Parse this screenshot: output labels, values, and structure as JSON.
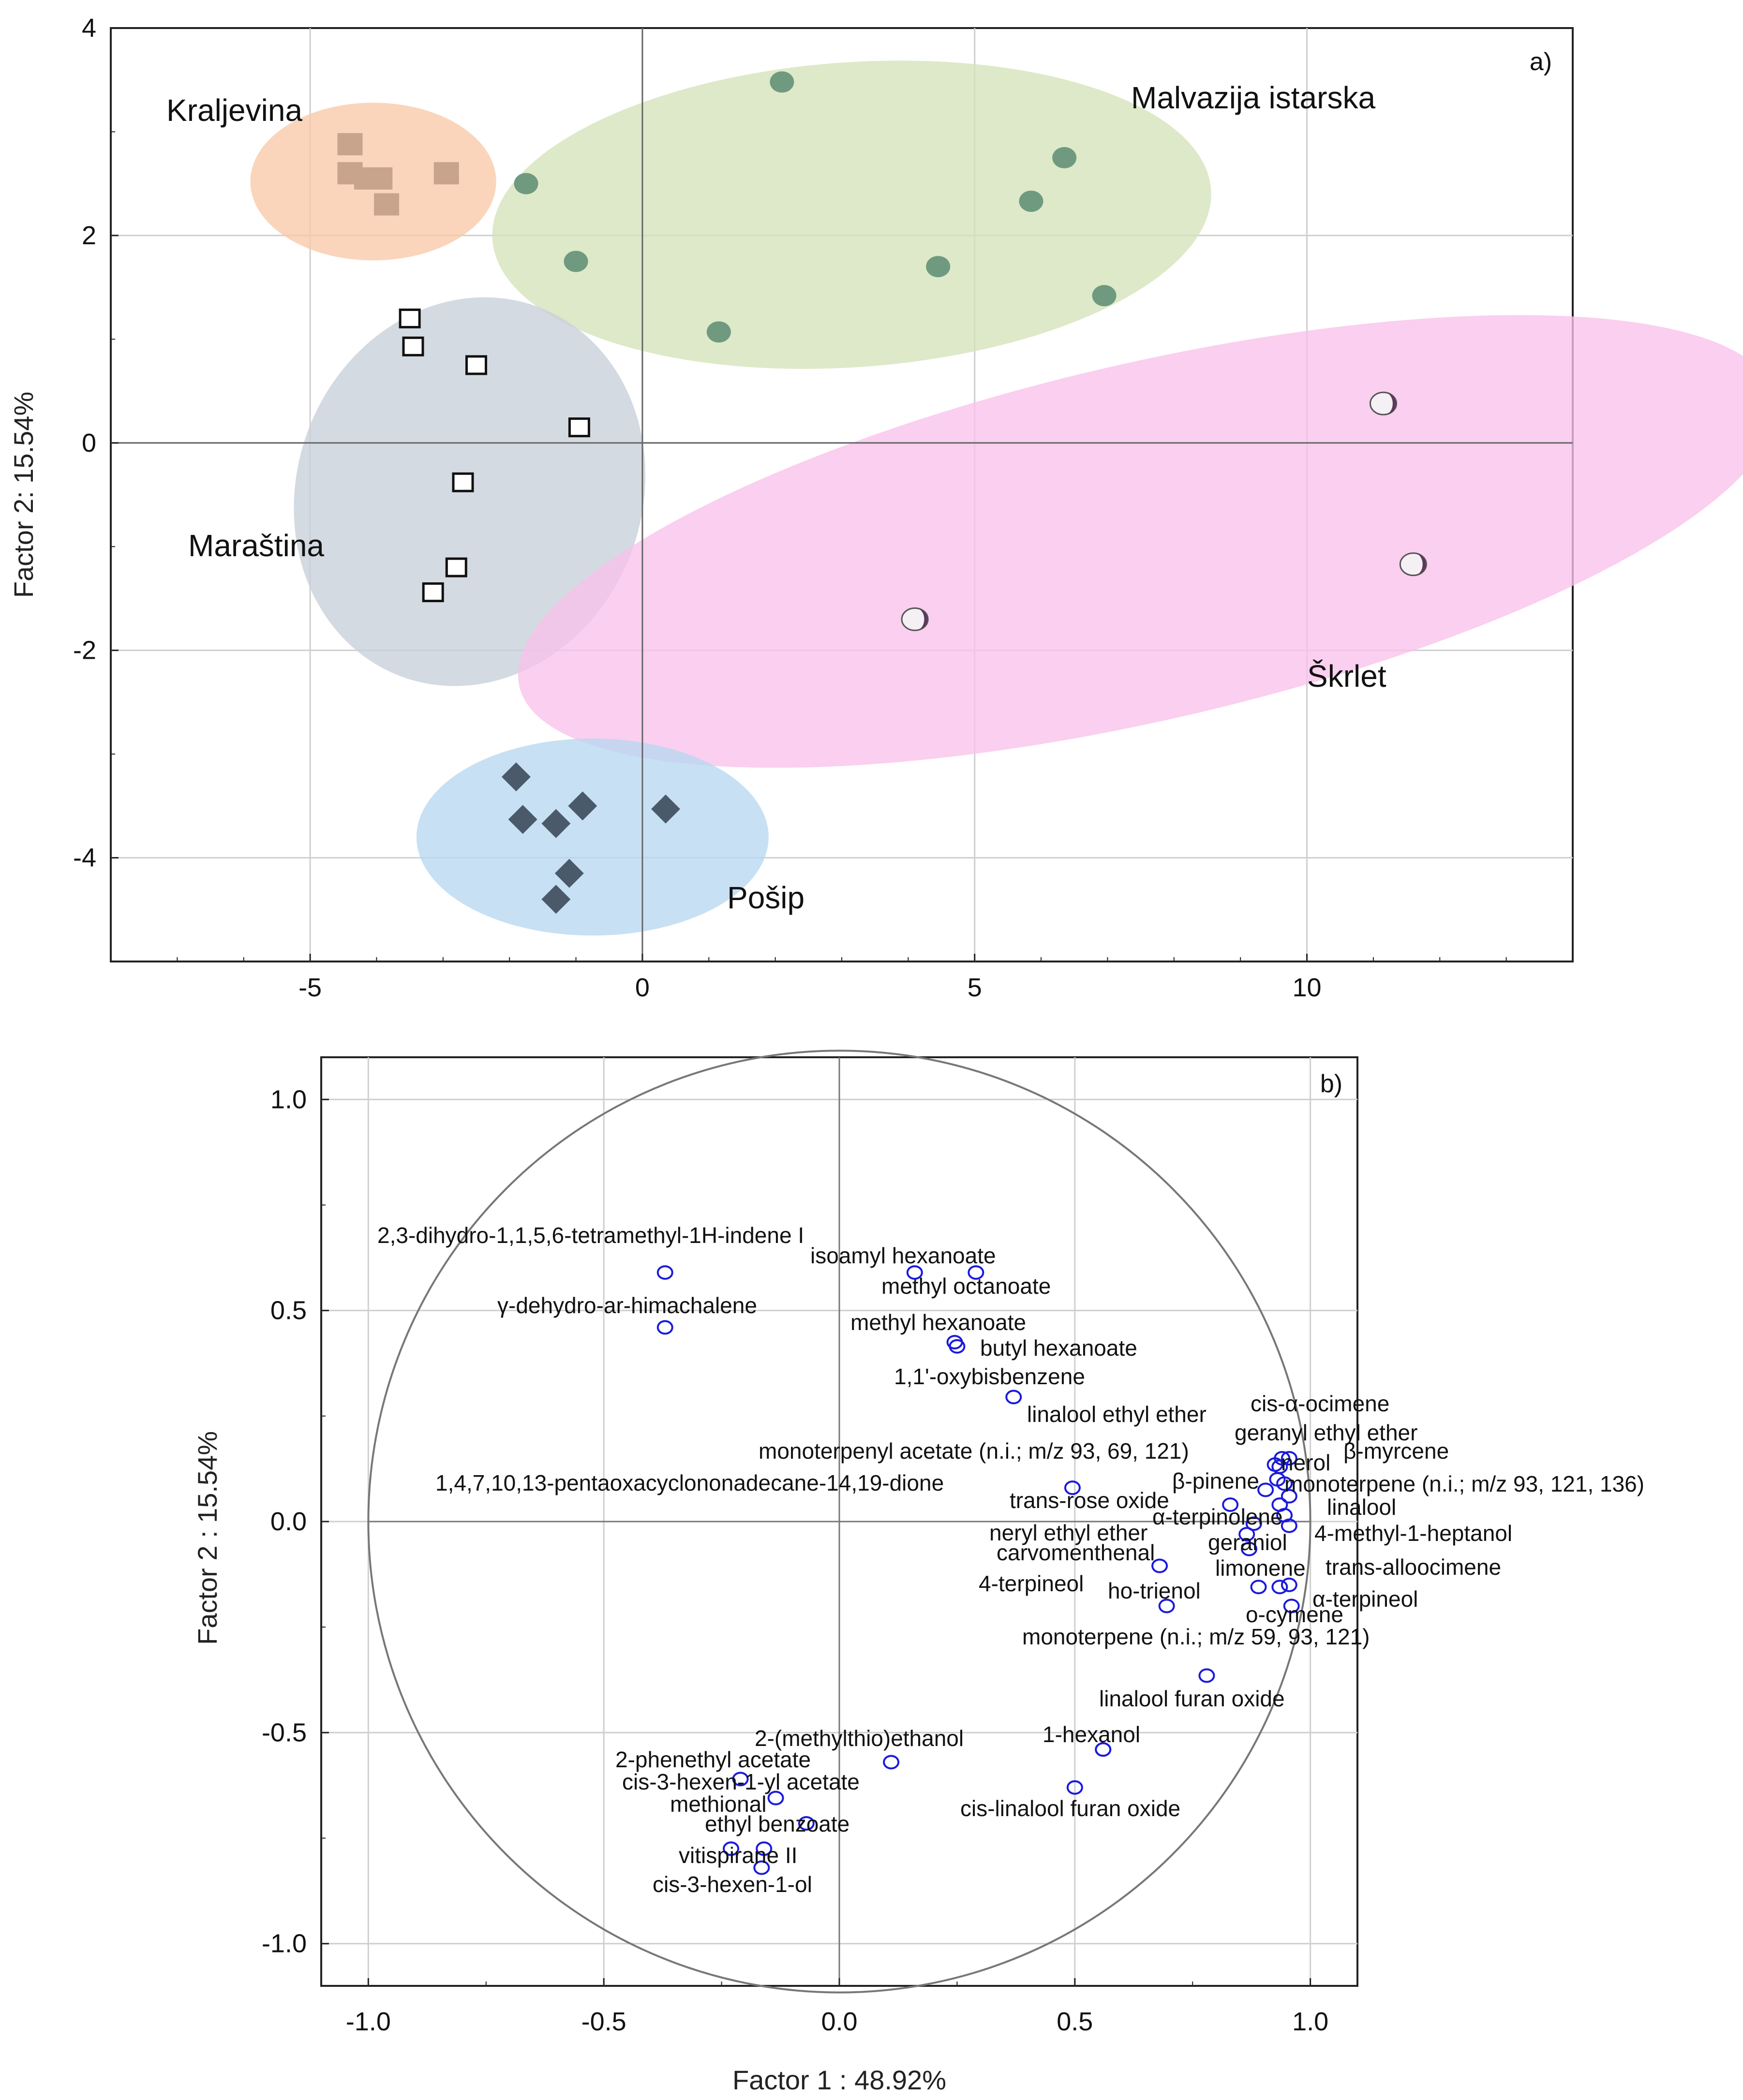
{
  "chart_data": [
    {
      "type": "scatter",
      "panel_label": "a)",
      "xlabel": "",
      "ylabel": "Factor 2: 15.54%",
      "xlim": [
        -8,
        14
      ],
      "ylim": [
        -5,
        4
      ],
      "xticks": [
        -5,
        0,
        5,
        10
      ],
      "yticks": [
        -4,
        -2,
        0,
        2,
        4
      ],
      "xtick_labels": [
        "-5",
        "0",
        "5",
        "10"
      ],
      "ytick_labels": [
        "-4",
        "-2",
        "0",
        "2",
        "4"
      ],
      "grid": true,
      "groups": [
        {
          "name": "Kraljevina",
          "marker": "square-filled",
          "color": "#c9a48d",
          "ellipse_color": "#f8c9a8",
          "ellipse": {
            "cx": -4.05,
            "cy": 2.52,
            "rx": 1.85,
            "ry": 0.76,
            "angle": 0
          },
          "points": [
            [
              -4.4,
              2.88
            ],
            [
              -4.4,
              2.6
            ],
            [
              -4.15,
              2.55
            ],
            [
              -3.95,
              2.55
            ],
            [
              -3.85,
              2.3
            ],
            [
              -2.95,
              2.6
            ]
          ]
        },
        {
          "name": "Malvazija istarska",
          "marker": "circle-filled",
          "color": "#6f9a80",
          "ellipse_color": "#d3e3b8",
          "ellipse": {
            "cx": 3.15,
            "cy": 2.2,
            "rx": 5.42,
            "ry": 1.47,
            "angle": -4
          },
          "points": [
            [
              2.1,
              3.48
            ],
            [
              -1.75,
              2.5
            ],
            [
              6.35,
              2.75
            ],
            [
              5.85,
              2.33
            ],
            [
              -1.0,
              1.75
            ],
            [
              4.45,
              1.7
            ],
            [
              6.95,
              1.42
            ],
            [
              1.15,
              1.07
            ]
          ]
        },
        {
          "name": "Maraština",
          "marker": "square-open",
          "color": "#111111",
          "ellipse_color": "#c8d0da",
          "ellipse": {
            "cx": -2.6,
            "cy": -0.47,
            "rx": 2.6,
            "ry": 1.9,
            "angle": 20
          },
          "points": [
            [
              -3.5,
              1.2
            ],
            [
              -3.45,
              0.93
            ],
            [
              -2.5,
              0.75
            ],
            [
              -0.95,
              0.15
            ],
            [
              -2.7,
              -0.38
            ],
            [
              -2.8,
              -1.2
            ],
            [
              -3.15,
              -1.44
            ]
          ]
        },
        {
          "name": "Škrlet",
          "marker": "circle-shaded",
          "color": "#5a3a5a",
          "ellipse_color": "#f9c2ea",
          "ellipse": {
            "cx": 7.6,
            "cy": -0.95,
            "rx": 9.7,
            "ry": 1.72,
            "angle": -13
          },
          "points": [
            [
              11.15,
              0.38
            ],
            [
              11.6,
              -1.17
            ],
            [
              4.1,
              -1.7
            ]
          ]
        },
        {
          "name": "Pošip",
          "marker": "diamond-filled",
          "color": "#4a5a6a",
          "ellipse_color": "#b9d7f0",
          "ellipse": {
            "cx": -0.75,
            "cy": -3.8,
            "rx": 2.65,
            "ry": 0.95,
            "angle": 0
          },
          "points": [
            [
              -1.9,
              -3.22
            ],
            [
              -1.8,
              -3.63
            ],
            [
              -1.3,
              -3.67
            ],
            [
              -0.9,
              -3.5
            ],
            [
              0.35,
              -3.53
            ],
            [
              -1.1,
              -4.15
            ],
            [
              -1.3,
              -4.4
            ]
          ]
        }
      ],
      "group_labels": [
        "Kraljevina",
        "Malvazija istarska",
        "Maraština",
        "Škrlet",
        "Pošip"
      ]
    },
    {
      "type": "scatter",
      "panel_label": "b)",
      "xlabel": "Factor 1 : 48.92%",
      "ylabel": "Factor 2 : 15.54%",
      "xlim": [
        -1.1,
        1.1
      ],
      "ylim": [
        -1.1,
        1.1
      ],
      "xticks": [
        -1.0,
        -0.5,
        0.0,
        0.5,
        1.0
      ],
      "yticks": [
        -1.0,
        -0.5,
        0.0,
        0.5,
        1.0
      ],
      "xtick_labels": [
        "-1.0",
        "-0.5",
        "0.0",
        "0.5",
        "1.0"
      ],
      "ytick_labels": [
        "-1.0",
        "-0.5",
        "0.0",
        "0.5",
        "1.0"
      ],
      "grid": true,
      "unit_circle": true,
      "marker_color": "#1a1adc",
      "points": [
        {
          "label": "2,3-dihydro-1,1,5,6-tetramethyl-1H-indene I",
          "x": -0.37,
          "y": 0.59
        },
        {
          "label": "isoamyl hexanoate",
          "x": 0.16,
          "y": 0.59
        },
        {
          "label": "methyl octanoate",
          "x": 0.29,
          "y": 0.59
        },
        {
          "label": "γ-dehydro-ar-himachalene",
          "x": -0.37,
          "y": 0.46
        },
        {
          "label": "methyl hexanoate",
          "x": 0.245,
          "y": 0.425
        },
        {
          "label": "butyl hexanoate",
          "x": 0.25,
          "y": 0.415
        },
        {
          "label": "1,1'-oxybisbenzene",
          "x": 0.37,
          "y": 0.295
        },
        {
          "label": "linalool ethyl ether",
          "x": 0.94,
          "y": 0.15
        },
        {
          "label": "cis-α-ocimene",
          "x": 0.955,
          "y": 0.15
        },
        {
          "label": "geranyl ethyl ether",
          "x": 0.935,
          "y": 0.13
        },
        {
          "label": "monoterpenyl acetate (n.i.; m/z 93, 69, 121)",
          "x": 0.925,
          "y": 0.135
        },
        {
          "label": "nerol",
          "x": 0.93,
          "y": 0.1
        },
        {
          "label": "β-myrcene",
          "x": 0.945,
          "y": 0.09
        },
        {
          "label": "1,4,7,10,13-pentaoxacyclononadecane-14,19-dione",
          "x": 0.495,
          "y": 0.08
        },
        {
          "label": "β-pinene",
          "x": 0.905,
          "y": 0.075
        },
        {
          "label": "monoterpene (n.i.; m/z 93, 121, 136)",
          "x": 0.955,
          "y": 0.06
        },
        {
          "label": "trans-rose oxide",
          "x": 0.83,
          "y": 0.04
        },
        {
          "label": "linalool",
          "x": 0.935,
          "y": 0.04
        },
        {
          "label": "α-terpinolene",
          "x": 0.945,
          "y": 0.015
        },
        {
          "label": "neryl ethyl ether",
          "x": 0.88,
          "y": -0.005
        },
        {
          "label": "4-methyl-1-heptanol",
          "x": 0.955,
          "y": -0.01
        },
        {
          "label": "geraniol",
          "x": 0.865,
          "y": -0.03
        },
        {
          "label": "carvomenthenal",
          "x": 0.87,
          "y": -0.065
        },
        {
          "label": "4-terpineol",
          "x": 0.68,
          "y": -0.105
        },
        {
          "label": "limonene",
          "x": 0.89,
          "y": -0.155
        },
        {
          "label": "trans-alloocimene",
          "x": 0.935,
          "y": -0.155
        },
        {
          "label": "ho-trienol",
          "x": 0.695,
          "y": -0.2
        },
        {
          "label": "α-terpineol",
          "x": 0.955,
          "y": -0.15
        },
        {
          "label": "o-cymene",
          "x": 0.96,
          "y": -0.2
        },
        {
          "label": "monoterpene (n.i.; m/z 59, 93, 121)",
          "x": 0.78,
          "y": -0.365
        },
        {
          "label": "linalool furan oxide",
          "x": 0.56,
          "y": -0.54
        },
        {
          "label": "1-hexanol",
          "x": 0.56,
          "y": -0.54
        },
        {
          "label": "cis-linalool furan oxide",
          "x": 0.5,
          "y": -0.63
        },
        {
          "label": "2-(methylthio)ethanol",
          "x": 0.11,
          "y": -0.57
        },
        {
          "label": "2-phenethyl acetate",
          "x": -0.21,
          "y": -0.61
        },
        {
          "label": "cis-3-hexen-1-yl acetate",
          "x": -0.135,
          "y": -0.655
        },
        {
          "label": "methional",
          "x": -0.07,
          "y": -0.715
        },
        {
          "label": "ethyl benzoate",
          "x": -0.16,
          "y": -0.775
        },
        {
          "label": "vitispirane II",
          "x": -0.23,
          "y": -0.775
        },
        {
          "label": "cis-3-hexen-1-ol",
          "x": -0.165,
          "y": -0.82
        }
      ],
      "annotations": [
        "2,3-dihydro-1,1,5,6-tetramethyl-1H-indene I",
        "isoamyl hexanoate",
        "methyl octanoate",
        "γ-dehydro-ar-himachalene",
        "methyl hexanoate",
        "butyl hexanoate",
        "1,1'-oxybisbenzene",
        "linalool ethyl ether",
        "cis-α-ocimene",
        "geranyl ethyl ether",
        "monoterpenyl acetate (n.i.; m/z 93, 69, 121)",
        "nerol",
        "β-myrcene",
        "1,4,7,10,13-pentaoxacyclononadecane-14,19-dione",
        "β-pinene",
        "monoterpene (n.i.; m/z 93, 121, 136)",
        "trans-rose oxide",
        "linalool",
        "α-terpinolene",
        "neryl ethyl ether",
        "4-methyl-1-heptanol",
        "geraniol",
        "carvomenthenal",
        "trans-alloocimene",
        "limonene",
        "4-terpineol",
        "ho-trienol",
        "α-terpineol",
        "o-cymene",
        "monoterpene (n.i.; m/z 59, 93, 121)",
        "linalool furan oxide",
        "1-hexanol",
        "2-(methylthio)ethanol",
        "2-phenethyl acetate",
        "cis-linalool furan oxide",
        "cis-3-hexen-1-yl acetate",
        "methional",
        "ethyl benzoate",
        "vitispirane II",
        "cis-3-hexen-1-ol"
      ]
    }
  ]
}
